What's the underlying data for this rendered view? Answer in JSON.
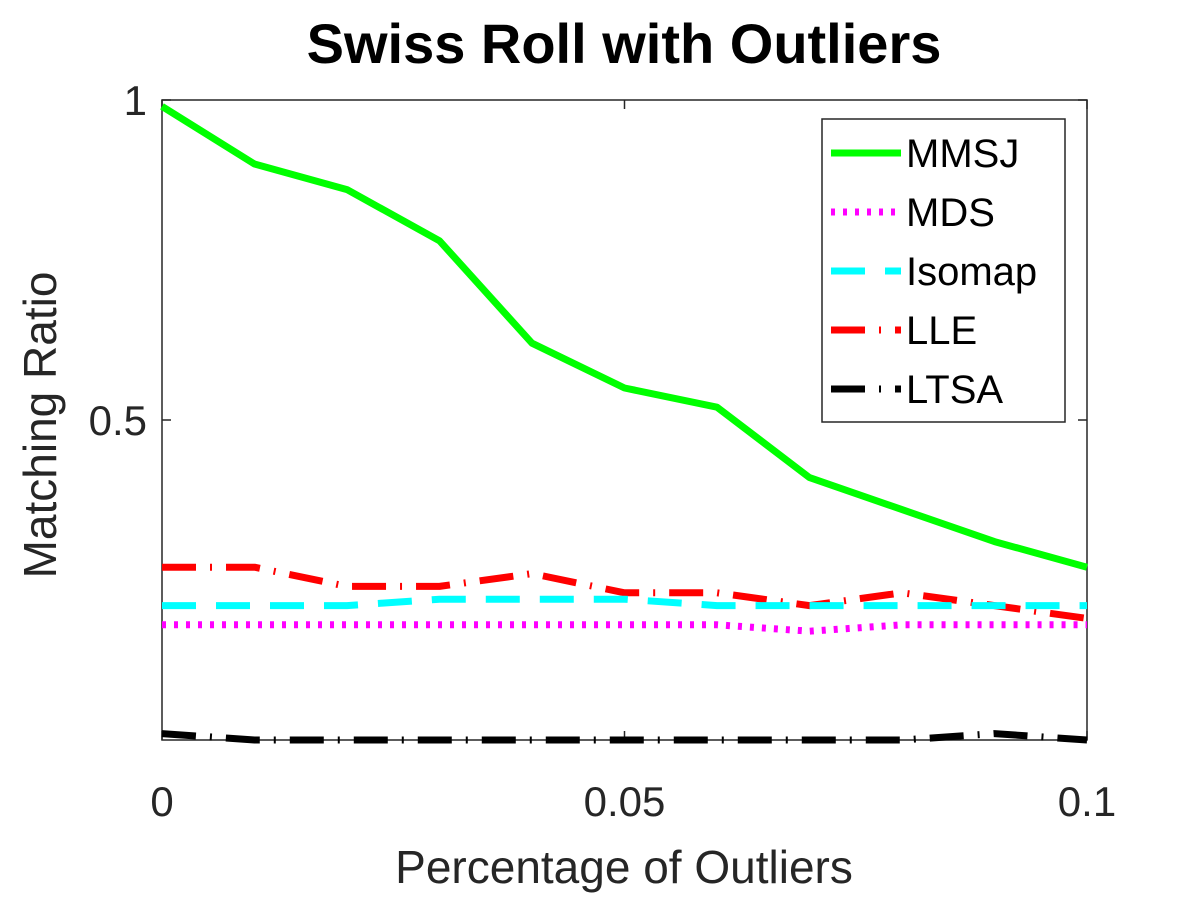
{
  "chart_data": {
    "type": "line",
    "title": "Swiss Roll with Outliers",
    "xlabel": "Percentage of Outliers",
    "ylabel": "Matching Ratio",
    "xlim": [
      0,
      0.1
    ],
    "ylim": [
      0,
      1
    ],
    "x_ticks": [
      0,
      0.05,
      0.1
    ],
    "x_tick_labels": [
      "0",
      "0.05",
      "0.1"
    ],
    "y_ticks": [
      0.5,
      1
    ],
    "y_tick_labels": [
      "0.5",
      "1"
    ],
    "grid": false,
    "legend_position": "top-right",
    "x": [
      0,
      0.01,
      0.02,
      0.03,
      0.04,
      0.05,
      0.06,
      0.07,
      0.08,
      0.09,
      0.1
    ],
    "series": [
      {
        "name": "MMSJ",
        "color": "#00ff00",
        "style": "solid",
        "values": [
          0.99,
          0.9,
          0.86,
          0.78,
          0.62,
          0.55,
          0.52,
          0.41,
          0.36,
          0.31,
          0.27
        ]
      },
      {
        "name": "MDS",
        "color": "#ff00ff",
        "style": "dotted",
        "values": [
          0.18,
          0.18,
          0.18,
          0.18,
          0.18,
          0.18,
          0.18,
          0.17,
          0.18,
          0.18,
          0.18
        ]
      },
      {
        "name": "Isomap",
        "color": "#00ffff",
        "style": "dashed",
        "values": [
          0.21,
          0.21,
          0.21,
          0.22,
          0.22,
          0.22,
          0.21,
          0.21,
          0.21,
          0.21,
          0.21
        ]
      },
      {
        "name": "LLE",
        "color": "#ff0000",
        "style": "dashdot",
        "values": [
          0.27,
          0.27,
          0.24,
          0.24,
          0.26,
          0.23,
          0.23,
          0.21,
          0.23,
          0.21,
          0.19
        ]
      },
      {
        "name": "LTSA",
        "color": "#000000",
        "style": "dashdot",
        "values": [
          0.01,
          0.0,
          0.0,
          0.0,
          0.0,
          0.0,
          0.0,
          0.0,
          0.0,
          0.01,
          0.0
        ]
      }
    ]
  }
}
